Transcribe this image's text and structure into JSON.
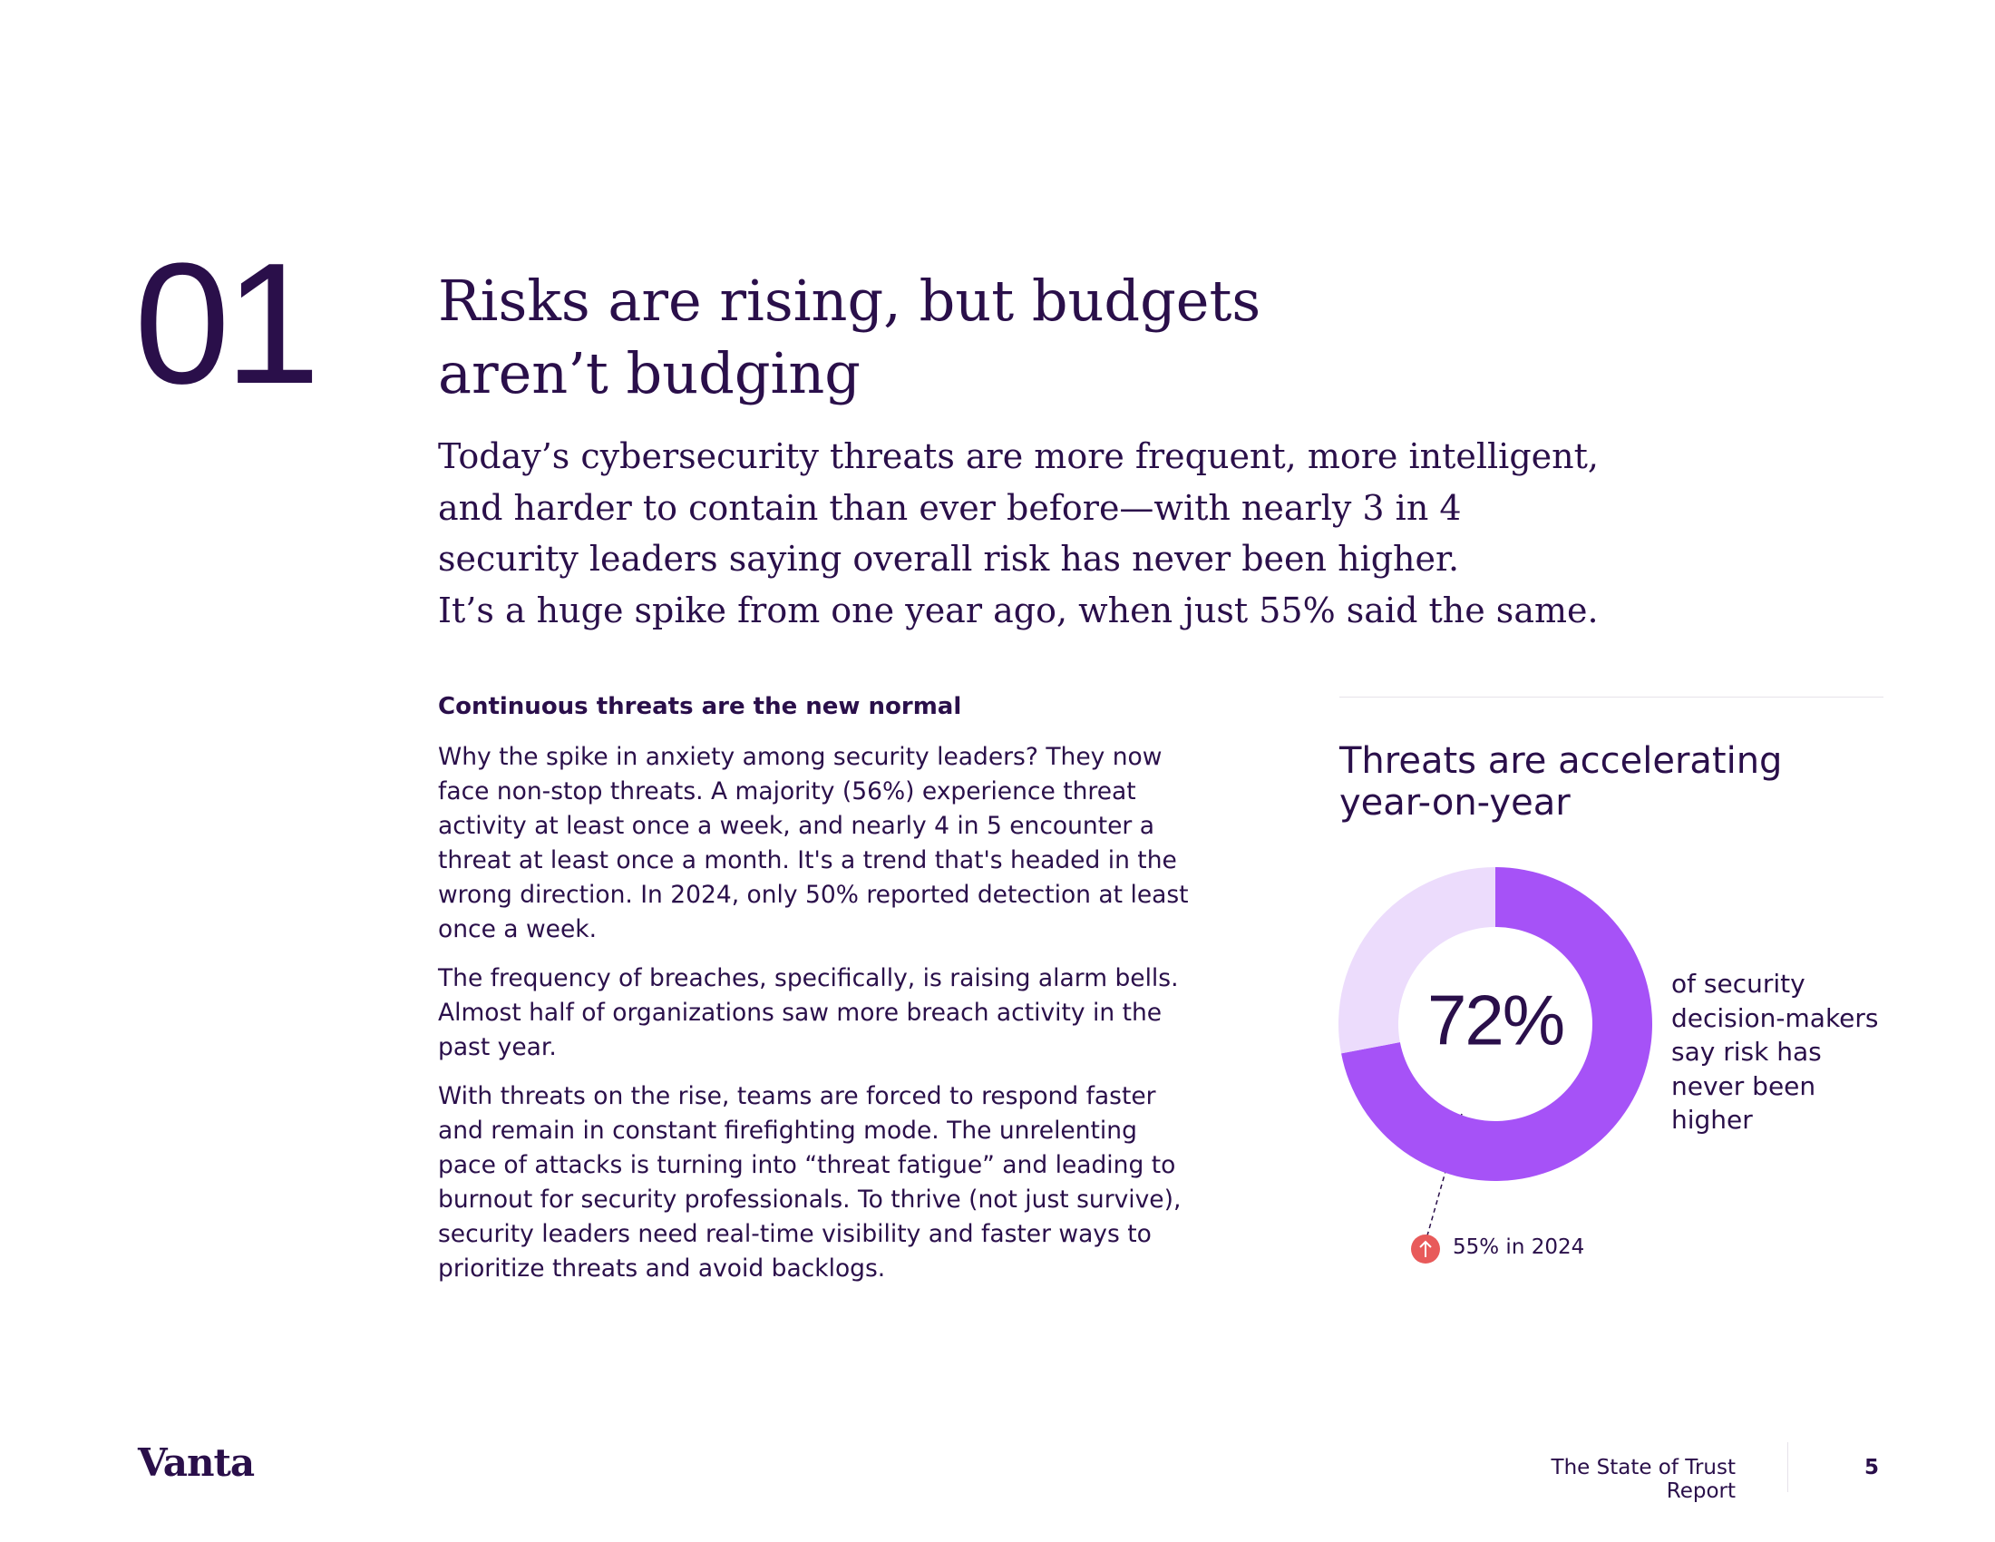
{
  "section_number": "01",
  "title_lines": [
    "Risks are rising, but budgets",
    "aren’t budging"
  ],
  "lead_lines": [
    "Today’s cybersecurity threats are more frequent, more intelligent,",
    "and harder to contain than ever before—with nearly 3 in 4",
    "security leaders saying overall risk has never been higher.",
    "It’s a huge spike from one year ago, when just 55% said the same."
  ],
  "body": {
    "heading": "Continuous threats are the new normal",
    "paragraphs": [
      "Why the spike in anxiety among security leaders? They now face non-stop threats. A majority (56%) experience threat activity at least once a week, and nearly 4 in 5 encounter a threat at least once a month. It's a trend that's headed in the wrong direction. In 2024, only 50% reported detection at least once a week.",
      "The frequency of breaches, specifically, is raising alarm bells. Almost half of organizations saw more breach activity in the past year.",
      "With threats on the rise, teams are forced to respond faster and remain in constant firefighting mode. The unrelenting pace of attacks is turning into “threat fatigue” and leading to burnout for security professionals. To thrive (not just survive), security leaders need real-time visibility and faster ways to prioritize threats and avoid backlogs."
    ]
  },
  "chart_data": {
    "type": "donut",
    "title": "Threats are accelerating year-on-year",
    "values": [
      72,
      28
    ],
    "value_labels": [
      "72%",
      null
    ],
    "colors": [
      "#a652f7",
      "#ecdcfc"
    ],
    "caption": "of security decision-makers say risk has never been higher",
    "annotation": "55% in 2024"
  },
  "footer": {
    "brand": "Vanta",
    "report": "The State of Trust Report",
    "page": "5"
  }
}
